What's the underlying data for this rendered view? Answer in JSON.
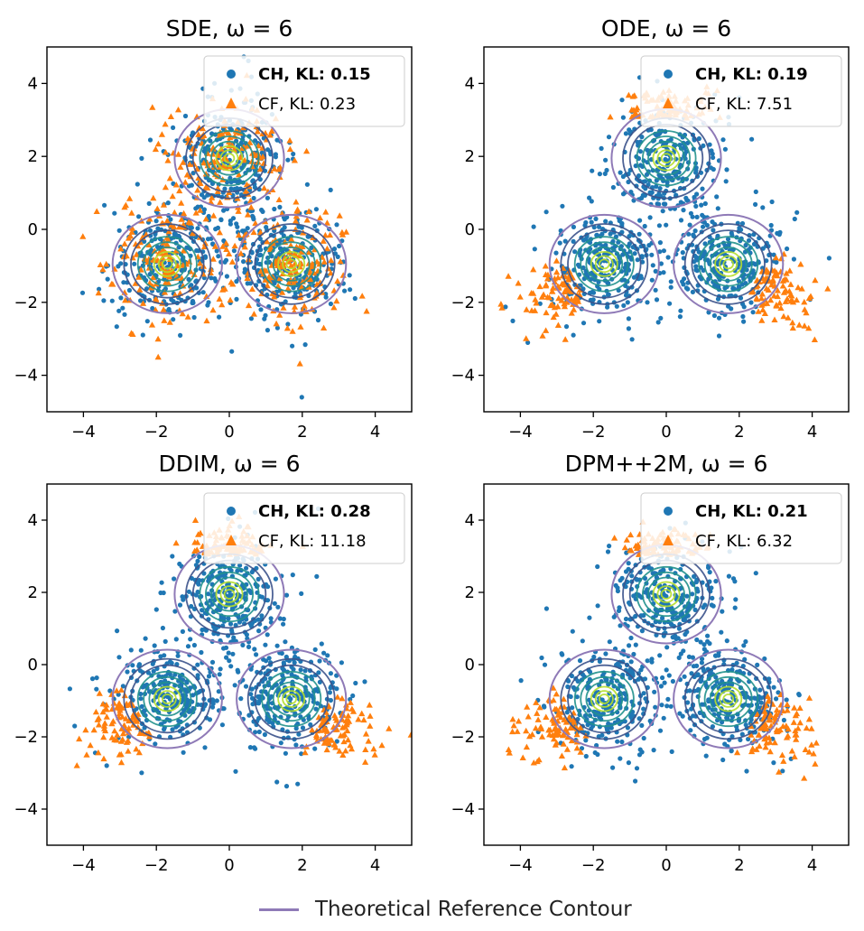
{
  "colors": {
    "ch": "#1f77b4",
    "cf": "#ff7f0e",
    "reference": "#8f7ab7",
    "contour_inner": "#b5de2b",
    "contour_mid": "#21918c",
    "contour_outer": "#3b528b"
  },
  "chart_data": [
    {
      "type": "scatter",
      "title": "SDE, ω = 6",
      "xlim": [
        -5,
        5
      ],
      "ylim": [
        -5,
        5
      ],
      "xticks": [
        -4,
        -2,
        0,
        2,
        4
      ],
      "yticks": [
        -4,
        -2,
        0,
        2,
        4
      ],
      "xticklabels": [
        "−4",
        "−2",
        "0",
        "2",
        "4"
      ],
      "yticklabels": [
        "−4",
        "−2",
        "0",
        "2",
        "4"
      ],
      "centers": [
        [
          0,
          1.95
        ],
        [
          -1.7,
          -0.95
        ],
        [
          1.7,
          -0.95
        ]
      ],
      "ch_spread": 0.75,
      "cf_spread": 0.85,
      "cf_mode": "full",
      "legend": {
        "position": "top-right",
        "entries": [
          {
            "series": "CH",
            "prefix": "CH, KL: ",
            "value": "0.15",
            "bold": true
          },
          {
            "series": "CF",
            "prefix": "CF, KL: ",
            "value": "0.23",
            "bold": false
          }
        ]
      }
    },
    {
      "type": "scatter",
      "title": "ODE, ω = 6",
      "xlim": [
        -5,
        5
      ],
      "ylim": [
        -5,
        5
      ],
      "xticks": [
        -4,
        -2,
        0,
        2,
        4
      ],
      "yticks": [
        -4,
        -2,
        0,
        2,
        4
      ],
      "xticklabels": [
        "−4",
        "−2",
        "0",
        "2",
        "4"
      ],
      "yticklabels": [
        "−4",
        "−2",
        "0",
        "2",
        "4"
      ],
      "centers": [
        [
          0,
          1.95
        ],
        [
          -1.7,
          -0.95
        ],
        [
          1.7,
          -0.95
        ]
      ],
      "ch_spread": 0.7,
      "cf_spread": 0.5,
      "cf_mode": "outer",
      "legend": {
        "position": "top-right",
        "entries": [
          {
            "series": "CH",
            "prefix": "CH, KL: ",
            "value": "0.19",
            "bold": true
          },
          {
            "series": "CF",
            "prefix": "CF, KL: ",
            "value": "7.51",
            "bold": false
          }
        ]
      }
    },
    {
      "type": "scatter",
      "title": "DDIM, ω = 6",
      "xlim": [
        -5,
        5
      ],
      "ylim": [
        -5,
        5
      ],
      "xticks": [
        -4,
        -2,
        0,
        2,
        4
      ],
      "yticks": [
        -4,
        -2,
        0,
        2,
        4
      ],
      "xticklabels": [
        "−4",
        "−2",
        "0",
        "2",
        "4"
      ],
      "yticklabels": [
        "−4",
        "−2",
        "0",
        "2",
        "4"
      ],
      "centers": [
        [
          0,
          1.95
        ],
        [
          -1.7,
          -0.95
        ],
        [
          1.7,
          -0.95
        ]
      ],
      "ch_spread": 0.7,
      "cf_spread": 0.5,
      "cf_mode": "outer",
      "legend": {
        "position": "top-right",
        "entries": [
          {
            "series": "CH",
            "prefix": "CH, KL: ",
            "value": "0.28",
            "bold": true
          },
          {
            "series": "CF",
            "prefix": "CF, KL: ",
            "value": "11.18",
            "bold": false
          }
        ]
      }
    },
    {
      "type": "scatter",
      "title": "DPM++2M, ω = 6",
      "xlim": [
        -5,
        5
      ],
      "ylim": [
        -5,
        5
      ],
      "xticks": [
        -4,
        -2,
        0,
        2,
        4
      ],
      "yticks": [
        -4,
        -2,
        0,
        2,
        4
      ],
      "xticklabels": [
        "−4",
        "−2",
        "0",
        "2",
        "4"
      ],
      "yticklabels": [
        "−4",
        "−2",
        "0",
        "2",
        "4"
      ],
      "centers": [
        [
          0,
          1.95
        ],
        [
          -1.7,
          -0.95
        ],
        [
          1.7,
          -0.95
        ]
      ],
      "ch_spread": 0.7,
      "cf_spread": 0.5,
      "cf_mode": "outer",
      "legend": {
        "position": "top-right",
        "entries": [
          {
            "series": "CH",
            "prefix": "CH, KL: ",
            "value": "0.21",
            "bold": true
          },
          {
            "series": "CF",
            "prefix": "CF, KL: ",
            "value": "6.32",
            "bold": false
          }
        ]
      }
    }
  ],
  "figure_legend": {
    "label": "Theoretical Reference Contour"
  }
}
